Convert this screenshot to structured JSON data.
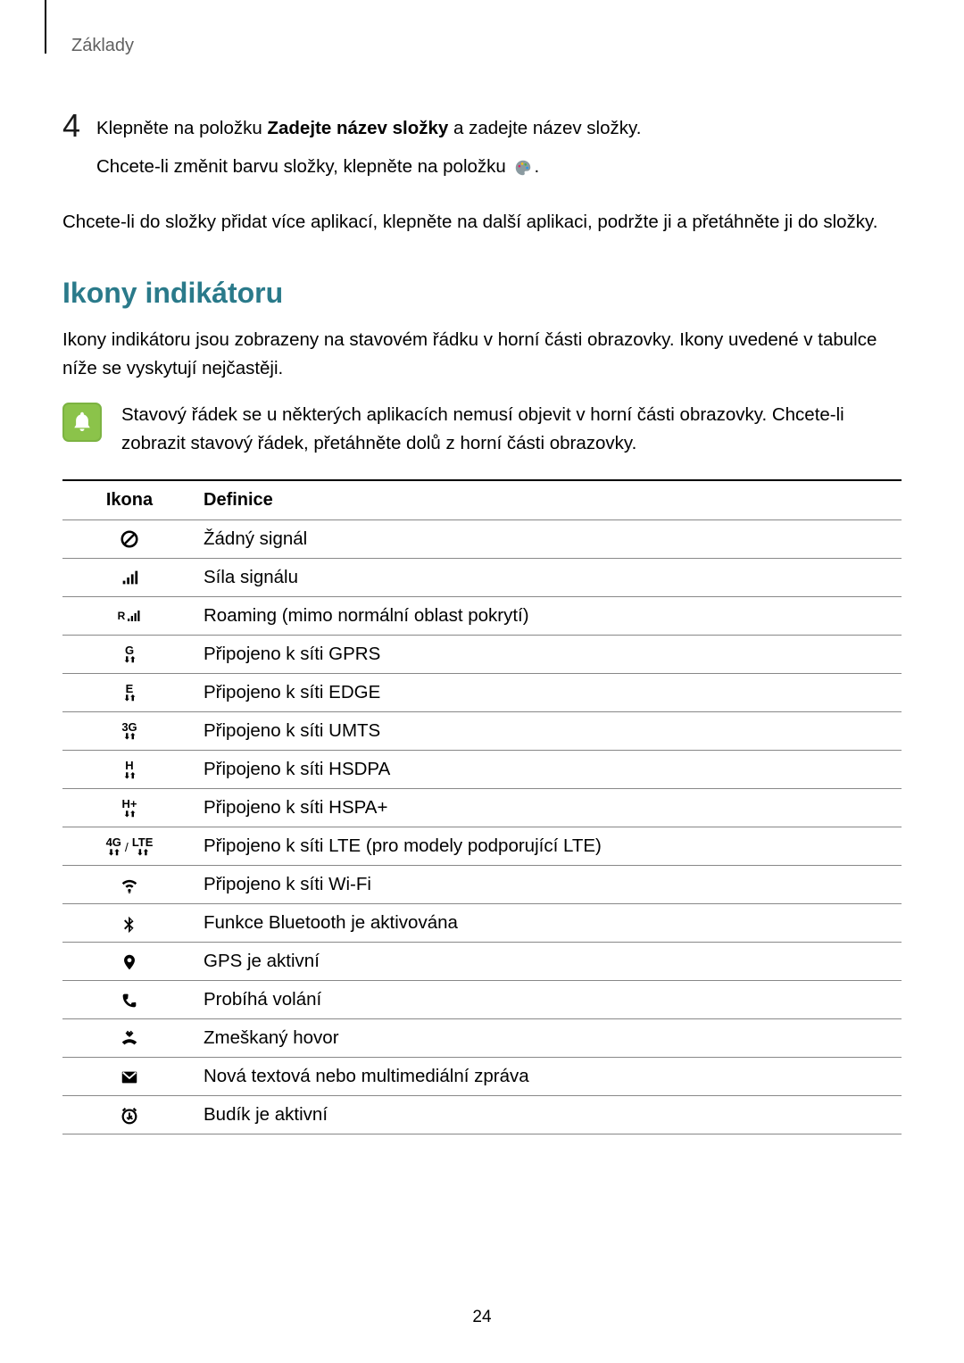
{
  "breadcrumb": "Základy",
  "step": {
    "number": "4",
    "line1_prefix": "Klepněte na položku ",
    "line1_bold": "Zadejte název složky",
    "line1_suffix": " a zadejte název složky.",
    "line2_prefix": "Chcete-li změnit barvu složky, klepněte na položku ",
    "line2_suffix": "."
  },
  "palette_icon": {
    "body_color": "#8a9aa0",
    "dots": [
      "#e91e63",
      "#ffc107",
      "#4caf50",
      "#2196f3"
    ]
  },
  "body_paragraph": "Chcete-li do složky přidat více aplikací, klepněte na další aplikaci, podržte ji a přetáhněte ji do složky.",
  "section_title": "Ikony indikátoru",
  "section_title_color": "#2a7a8a",
  "section_intro": "Ikony indikátoru jsou zobrazeny na stavovém řádku v horní části obrazovky. Ikony uvedené v tabulce níže se vyskytují nejčastěji.",
  "note": {
    "icon_bg": "#8bc34a",
    "icon_border": "#7cb342",
    "bell_color": "#ffffff",
    "text": "Stavový řádek se u některých aplikacích nemusí objevit v horní části obrazovky. Chcete-li zobrazit stavový řádek, přetáhněte dolů z horní části obrazovky."
  },
  "table": {
    "header_icon": "Ikona",
    "header_def": "Definice",
    "rows": [
      {
        "icon": "no-signal",
        "label": "",
        "def": "Žádný signál"
      },
      {
        "icon": "signal",
        "label": "",
        "def": "Síla signálu"
      },
      {
        "icon": "roaming",
        "label": "R",
        "def": "Roaming (mimo normální oblast pokrytí)"
      },
      {
        "icon": "net-text",
        "label": "G",
        "def": "Připojeno k síti GPRS"
      },
      {
        "icon": "net-text",
        "label": "E",
        "def": "Připojeno k síti EDGE"
      },
      {
        "icon": "net-text",
        "label": "3G",
        "def": "Připojeno k síti UMTS"
      },
      {
        "icon": "net-text",
        "label": "H",
        "def": "Připojeno k síti HSDPA"
      },
      {
        "icon": "net-text",
        "label": "H+",
        "def": "Připojeno k síti HSPA+"
      },
      {
        "icon": "lte-pair",
        "label": "4G / LTE",
        "def": "Připojeno k síti LTE (pro modely podporující LTE)"
      },
      {
        "icon": "wifi",
        "label": "",
        "def": "Připojeno k síti Wi-Fi"
      },
      {
        "icon": "bluetooth",
        "label": "",
        "def": "Funkce Bluetooth je aktivována"
      },
      {
        "icon": "gps",
        "label": "",
        "def": "GPS je aktivní"
      },
      {
        "icon": "call",
        "label": "",
        "def": "Probíhá volání"
      },
      {
        "icon": "missed",
        "label": "",
        "def": "Zmeškaný hovor"
      },
      {
        "icon": "message",
        "label": "",
        "def": "Nová textová nebo multimediální zpráva"
      },
      {
        "icon": "alarm",
        "label": "",
        "def": "Budík je aktivní"
      }
    ]
  },
  "page_number": "24"
}
